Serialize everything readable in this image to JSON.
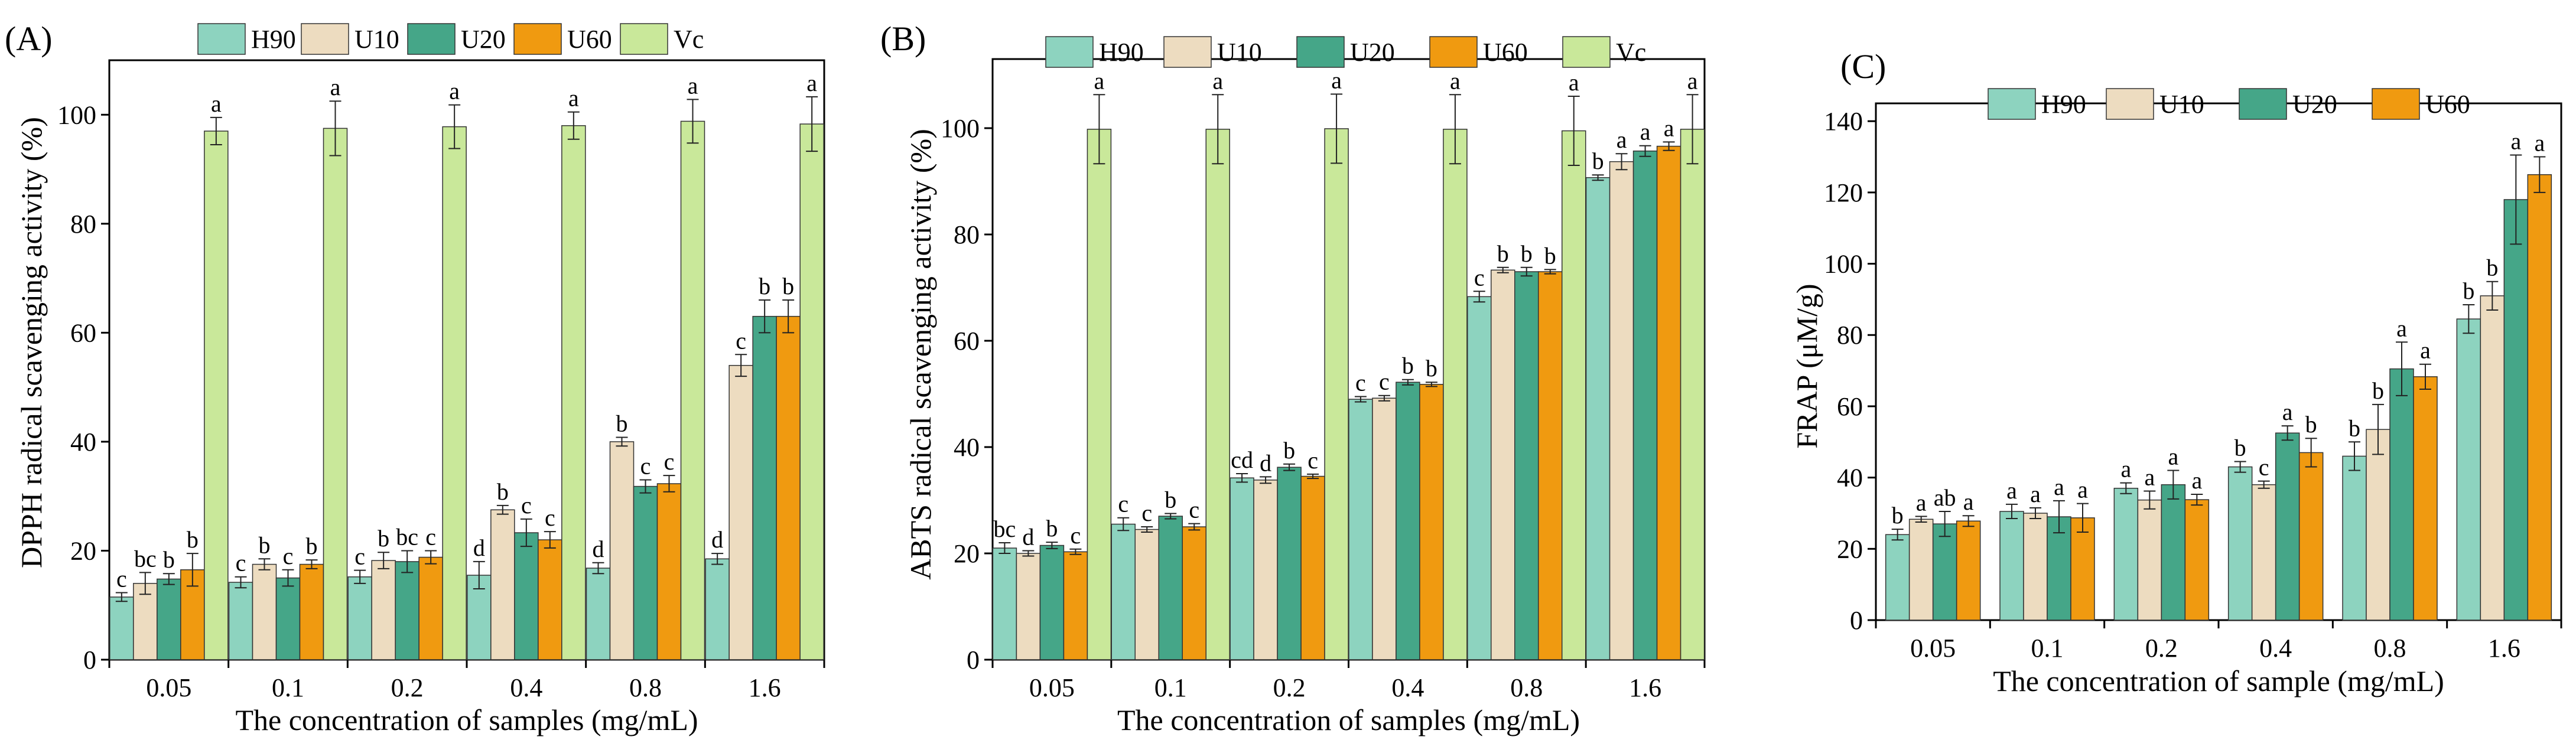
{
  "colors": {
    "H90": "#8dd3bf",
    "U10": "#eddcc0",
    "U20": "#45a688",
    "U60": "#f09a10",
    "Vc": "#c9e89a"
  },
  "chart_data": [
    {
      "type": "bar",
      "panel_label": "(A)",
      "xlabel": "The concentration of samples (mg/mL)",
      "ylabel": "DPPH radical scavenging activity (%)",
      "categories": [
        "0.05",
        "0.1",
        "0.2",
        "0.4",
        "0.8",
        "1.6"
      ],
      "ylim": [
        0,
        110
      ],
      "yticks": [
        "0",
        "20",
        "40",
        "60",
        "80",
        "100"
      ],
      "legend": [
        "H90",
        "U10",
        "U20",
        "U60",
        "Vc"
      ],
      "series": [
        {
          "name": "H90",
          "values": [
            11.5,
            14.2,
            15.2,
            15.5,
            16.8,
            18.5
          ],
          "errors": [
            0.8,
            1.0,
            1.2,
            2.5,
            1.0,
            1.0
          ],
          "letters": [
            "c",
            "c",
            "c",
            "d",
            "d",
            "d"
          ]
        },
        {
          "name": "U10",
          "values": [
            14.0,
            17.5,
            18.2,
            27.5,
            40.0,
            54.0
          ],
          "errors": [
            2.0,
            1.0,
            1.5,
            0.8,
            0.8,
            2.0
          ],
          "letters": [
            "bc",
            "b",
            "b",
            "b",
            "b",
            "c"
          ]
        },
        {
          "name": "U20",
          "values": [
            14.8,
            15.0,
            18.0,
            23.3,
            31.8,
            63.0
          ],
          "errors": [
            1.0,
            1.5,
            2.0,
            2.5,
            1.2,
            3.0
          ],
          "letters": [
            "b",
            "c",
            "bc",
            "c",
            "c",
            "b"
          ]
        },
        {
          "name": "U60",
          "values": [
            16.5,
            17.5,
            18.8,
            22.0,
            32.3,
            63.0
          ],
          "errors": [
            3.0,
            0.8,
            1.2,
            1.5,
            1.5,
            3.0
          ],
          "letters": [
            "b",
            "b",
            "c",
            "c",
            "c",
            "b"
          ]
        },
        {
          "name": "Vc",
          "values": [
            97.0,
            97.5,
            97.8,
            98.0,
            98.8,
            98.3
          ],
          "errors": [
            2.5,
            5.0,
            4.0,
            2.5,
            4.0,
            5.0
          ],
          "letters": [
            "a",
            "a",
            "a",
            "a",
            "a",
            "a"
          ]
        }
      ]
    },
    {
      "type": "bar",
      "panel_label": "(B)",
      "xlabel": "The concentration of samples (mg/mL)",
      "ylabel": "ABTS radical scavenging activity (%)",
      "categories": [
        "0.05",
        "0.1",
        "0.2",
        "0.4",
        "0.8",
        "1.6"
      ],
      "ylim": [
        0,
        113
      ],
      "yticks": [
        "0",
        "20",
        "40",
        "60",
        "80",
        "100"
      ],
      "legend": [
        "H90",
        "U10",
        "U20",
        "U60",
        "Vc"
      ],
      "series": [
        {
          "name": "H90",
          "values": [
            21.0,
            25.5,
            34.2,
            49.0,
            68.3,
            90.7
          ],
          "errors": [
            1.0,
            1.2,
            0.8,
            0.5,
            1.0,
            0.5
          ],
          "letters": [
            "bc",
            "c",
            "cd",
            "c",
            "c",
            "b"
          ]
        },
        {
          "name": "U10",
          "values": [
            20.0,
            24.5,
            33.8,
            49.2,
            73.3,
            93.7
          ],
          "errors": [
            0.5,
            0.5,
            0.6,
            0.5,
            0.5,
            1.5
          ],
          "letters": [
            "d",
            "c",
            "d",
            "c",
            "b",
            "a"
          ]
        },
        {
          "name": "U20",
          "values": [
            21.5,
            27.0,
            36.2,
            52.2,
            73.0,
            95.7
          ],
          "errors": [
            0.6,
            0.5,
            0.6,
            0.5,
            0.8,
            1.0
          ],
          "letters": [
            "b",
            "b",
            "b",
            "b",
            "b",
            "a"
          ]
        },
        {
          "name": "U60",
          "values": [
            20.3,
            25.0,
            34.5,
            51.8,
            73.0,
            96.6
          ],
          "errors": [
            0.5,
            0.6,
            0.4,
            0.4,
            0.4,
            0.8
          ],
          "letters": [
            "c",
            "c",
            "c",
            "b",
            "b",
            "a"
          ]
        },
        {
          "name": "Vc",
          "values": [
            99.8,
            99.8,
            99.9,
            99.8,
            99.5,
            99.8
          ],
          "errors": [
            6.5,
            6.5,
            6.5,
            6.5,
            6.5,
            6.5
          ],
          "letters": [
            "a",
            "a",
            "a",
            "a",
            "a",
            "a"
          ]
        }
      ]
    },
    {
      "type": "bar",
      "panel_label": "(C)",
      "xlabel": "The concentration of sample (mg/mL)",
      "ylabel": "FRAP (μM/g)",
      "categories": [
        "0.05",
        "0.1",
        "0.2",
        "0.4",
        "0.8",
        "1.6"
      ],
      "ylim": [
        0,
        145
      ],
      "yticks": [
        "0",
        "20",
        "40",
        "60",
        "80",
        "100",
        "120",
        "140"
      ],
      "legend": [
        "H90",
        "U10",
        "U20",
        "U60"
      ],
      "series": [
        {
          "name": "H90",
          "values": [
            24.0,
            30.5,
            37.0,
            43.0,
            46.0,
            84.5
          ],
          "errors": [
            1.5,
            2.0,
            1.5,
            1.5,
            4.0,
            4.0
          ],
          "letters": [
            "b",
            "a",
            "a",
            "b",
            "b",
            "b"
          ]
        },
        {
          "name": "U10",
          "values": [
            28.3,
            30.0,
            33.7,
            38.0,
            53.5,
            91.0
          ],
          "errors": [
            0.8,
            1.5,
            2.5,
            1.0,
            7.0,
            4.0
          ],
          "letters": [
            "a",
            "a",
            "a",
            "c",
            "b",
            "b"
          ]
        },
        {
          "name": "U20",
          "values": [
            27.0,
            29.0,
            38.0,
            52.5,
            70.5,
            118.0
          ],
          "errors": [
            3.5,
            4.5,
            4.0,
            2.0,
            7.5,
            12.5
          ],
          "letters": [
            "ab",
            "a",
            "a",
            "a",
            "a",
            "a"
          ]
        },
        {
          "name": "U60",
          "values": [
            27.8,
            28.7,
            33.8,
            47.0,
            68.3,
            125.0
          ],
          "errors": [
            1.5,
            4.0,
            1.5,
            4.0,
            3.5,
            5.0
          ],
          "letters": [
            "a",
            "a",
            "a",
            "b",
            "a",
            "a"
          ]
        }
      ]
    }
  ]
}
